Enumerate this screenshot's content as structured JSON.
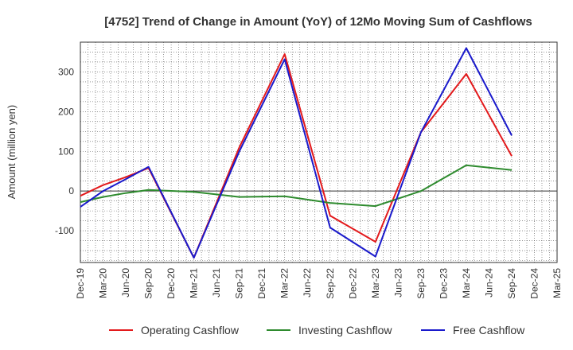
{
  "chart_data": {
    "type": "line",
    "title": "[4752]  Trend of Change in Amount (YoY) of 12Mo Moving Sum of Cashflows",
    "xlabel": "",
    "ylabel": "Amount (million yen)",
    "ylim": [
      -180,
      375
    ],
    "yticks": [
      -100,
      0,
      100,
      200,
      300
    ],
    "grid": true,
    "legend_position": "bottom",
    "categories": [
      "Dec-19",
      "Mar-20",
      "Jun-20",
      "Sep-20",
      "Dec-20",
      "Mar-21",
      "Jun-21",
      "Sep-21",
      "Dec-21",
      "Mar-22",
      "Jun-22",
      "Sep-22",
      "Dec-22",
      "Mar-23",
      "Jun-23",
      "Sep-23",
      "Dec-23",
      "Mar-24",
      "Jun-24",
      "Sep-24",
      "Dec-24",
      "Mar-25"
    ],
    "series": [
      {
        "name": "Operating Cashflow",
        "color": "#e31a1c",
        "values": [
          -12,
          15,
          35,
          58,
          null,
          -168,
          null,
          110,
          null,
          345,
          null,
          -62,
          null,
          -128,
          null,
          148,
          null,
          295,
          null,
          88,
          null,
          null
        ]
      },
      {
        "name": "Investing Cashflow",
        "color": "#2e8b2e",
        "values": [
          -28,
          -15,
          -5,
          3,
          null,
          -2,
          null,
          -15,
          null,
          -13,
          null,
          -30,
          null,
          -38,
          null,
          0,
          null,
          65,
          null,
          53,
          null,
          null
        ]
      },
      {
        "name": "Free Cashflow",
        "color": "#1a1acc",
        "values": [
          -40,
          0,
          30,
          61,
          null,
          -168,
          null,
          100,
          null,
          332,
          null,
          -92,
          null,
          -165,
          null,
          148,
          null,
          360,
          null,
          140,
          null,
          null
        ]
      }
    ]
  }
}
